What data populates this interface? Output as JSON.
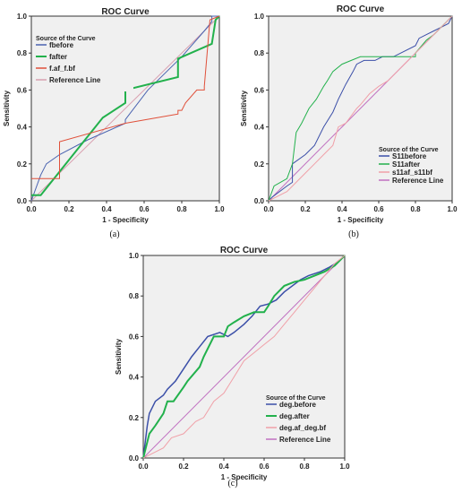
{
  "chart_data": [
    {
      "type": "line",
      "title": "ROC Curve",
      "caption": "(a)",
      "xlabel": "1 - Specificity",
      "ylabel": "Sensitivity",
      "xlim": [
        0,
        1
      ],
      "ylim": [
        0,
        1
      ],
      "xticks": [
        "0.0",
        "0.2",
        "0.4",
        "0.6",
        "0.8",
        "1.0"
      ],
      "yticks": [
        "0.0",
        "0.2",
        "0.4",
        "0.6",
        "0.8",
        "1.0"
      ],
      "grid": false,
      "legend": {
        "placement": "top-left",
        "title": "Source of the Curve"
      },
      "series": [
        {
          "name": "fbefore",
          "color": "#4a63b0",
          "width": 1,
          "x": [
            0,
            0.05,
            0.08,
            0.15,
            0.3,
            0.5,
            0.5,
            0.62,
            0.8,
            0.92,
            0.96,
            0.96,
            1
          ],
          "y": [
            0,
            0.14,
            0.2,
            0.25,
            0.33,
            0.42,
            0.44,
            0.6,
            0.78,
            0.92,
            0.97,
            1,
            1
          ]
        },
        {
          "name": "fafter",
          "color": "#22b14c",
          "width": 2,
          "x": [
            0,
            0.05,
            0.38,
            0.5,
            0.5,
            0.78,
            0.78,
            0.96,
            0.98,
            1
          ],
          "y": [
            0.03,
            0.03,
            0.45,
            0.53,
            0.6,
            0.67,
            0.77,
            0.85,
            0.98,
            1
          ]
        },
        {
          "name": "f.af_f.bf",
          "color": "#e0503a",
          "width": 1,
          "x": [
            0,
            0.08,
            0.15,
            0.15,
            0.5,
            0.78,
            0.78,
            0.8,
            0.82,
            0.88,
            0.92,
            0.92,
            0.95,
            1
          ],
          "y": [
            0.12,
            0.12,
            0.12,
            0.32,
            0.42,
            0.47,
            0.49,
            0.49,
            0.53,
            0.6,
            0.6,
            0.62,
            0.98,
            1
          ]
        },
        {
          "name": "Reference Line",
          "color": "#d9a0b0",
          "width": 1,
          "x": [
            0,
            1
          ],
          "y": [
            0,
            1
          ]
        }
      ]
    },
    {
      "type": "line",
      "title": "ROC Curve",
      "caption": "(b)",
      "xlabel": "1 - Specificity",
      "ylabel": "Sensitivity",
      "xlim": [
        0,
        1
      ],
      "ylim": [
        0,
        1
      ],
      "xticks": [
        "0.0",
        "0.2",
        "0.4",
        "0.6",
        "0.8",
        "1.0"
      ],
      "yticks": [
        "0.0",
        "0.2",
        "0.4",
        "0.6",
        "0.8",
        "1.0"
      ],
      "grid": false,
      "legend": {
        "placement": "bottom-right",
        "title": "Source of the Curve"
      },
      "series": [
        {
          "name": "S11before",
          "color": "#3b4fa8",
          "width": 1,
          "x": [
            0,
            0.02,
            0.1,
            0.13,
            0.13,
            0.2,
            0.25,
            0.3,
            0.35,
            0.38,
            0.42,
            0.46,
            0.48,
            0.52,
            0.58,
            0.62,
            0.68,
            0.72,
            0.8,
            0.82,
            0.86,
            0.9,
            0.94,
            0.98,
            1
          ],
          "y": [
            0,
            0.02,
            0.08,
            0.1,
            0.2,
            0.25,
            0.3,
            0.4,
            0.48,
            0.55,
            0.63,
            0.7,
            0.74,
            0.76,
            0.76,
            0.78,
            0.78,
            0.8,
            0.84,
            0.88,
            0.9,
            0.92,
            0.94,
            0.96,
            1
          ]
        },
        {
          "name": "S11after",
          "color": "#22b14c",
          "width": 1,
          "x": [
            0,
            0.03,
            0.1,
            0.13,
            0.15,
            0.18,
            0.22,
            0.26,
            0.3,
            0.32,
            0.35,
            0.4,
            0.45,
            0.5,
            0.55,
            0.62,
            0.7,
            0.8,
            0.8,
            0.86,
            0.9,
            0.94,
            1
          ],
          "y": [
            0,
            0.08,
            0.12,
            0.2,
            0.37,
            0.42,
            0.5,
            0.55,
            0.62,
            0.65,
            0.7,
            0.74,
            0.76,
            0.78,
            0.78,
            0.78,
            0.78,
            0.78,
            0.8,
            0.87,
            0.9,
            0.94,
            1
          ]
        },
        {
          "name": "s11af_s11bf",
          "color": "#f0a0a8",
          "width": 1,
          "x": [
            0,
            0.1,
            0.15,
            0.2,
            0.25,
            0.3,
            0.35,
            0.38,
            0.42,
            0.48,
            0.5,
            0.55,
            0.6,
            0.65,
            0.7,
            0.75,
            0.8,
            0.85,
            0.9,
            0.95,
            1
          ],
          "y": [
            0,
            0.05,
            0.1,
            0.15,
            0.2,
            0.25,
            0.3,
            0.4,
            0.42,
            0.5,
            0.52,
            0.58,
            0.62,
            0.65,
            0.7,
            0.75,
            0.8,
            0.85,
            0.9,
            0.95,
            1
          ]
        },
        {
          "name": "Reference Line",
          "color": "#c070c0",
          "width": 1,
          "x": [
            0,
            1
          ],
          "y": [
            0,
            1
          ]
        }
      ]
    },
    {
      "type": "line",
      "title": "ROC Curve",
      "caption": "(c)",
      "xlabel": "1 - Specificity",
      "ylabel": "Sensitivity",
      "xlim": [
        0,
        1
      ],
      "ylim": [
        0,
        1
      ],
      "xticks": [
        "0.0",
        "0.2",
        "0.4",
        "0.6",
        "0.8",
        "1.0"
      ],
      "yticks": [
        "0.0",
        "0.2",
        "0.4",
        "0.6",
        "0.8",
        "1.0"
      ],
      "grid": false,
      "legend": {
        "placement": "bottom-right",
        "title": "Source of the Curve"
      },
      "series": [
        {
          "name": "deg.before",
          "color": "#3b4fa8",
          "width": 1.5,
          "x": [
            0,
            0.02,
            0.03,
            0.06,
            0.1,
            0.12,
            0.16,
            0.2,
            0.24,
            0.28,
            0.32,
            0.38,
            0.42,
            0.45,
            0.5,
            0.54,
            0.58,
            0.62,
            0.66,
            0.7,
            0.78,
            0.82,
            0.88,
            0.92,
            0.97,
            1
          ],
          "y": [
            0,
            0.16,
            0.22,
            0.28,
            0.31,
            0.34,
            0.38,
            0.44,
            0.5,
            0.55,
            0.6,
            0.62,
            0.6,
            0.62,
            0.66,
            0.7,
            0.75,
            0.76,
            0.78,
            0.82,
            0.88,
            0.9,
            0.92,
            0.94,
            0.97,
            1
          ]
        },
        {
          "name": "deg.after",
          "color": "#22b14c",
          "width": 2,
          "x": [
            0,
            0.03,
            0.06,
            0.1,
            0.12,
            0.15,
            0.2,
            0.22,
            0.28,
            0.3,
            0.35,
            0.4,
            0.42,
            0.45,
            0.5,
            0.55,
            0.6,
            0.62,
            0.65,
            0.7,
            0.75,
            0.8,
            0.85,
            0.9,
            0.95,
            1
          ],
          "y": [
            0,
            0.12,
            0.16,
            0.22,
            0.28,
            0.28,
            0.35,
            0.38,
            0.45,
            0.5,
            0.6,
            0.6,
            0.65,
            0.67,
            0.7,
            0.72,
            0.72,
            0.75,
            0.8,
            0.85,
            0.87,
            0.88,
            0.9,
            0.92,
            0.95,
            1
          ]
        },
        {
          "name": "deg.af_deg.bf",
          "color": "#f0a0a8",
          "width": 1,
          "x": [
            0,
            0.1,
            0.14,
            0.2,
            0.26,
            0.3,
            0.35,
            0.4,
            0.45,
            0.5,
            0.55,
            0.6,
            0.65,
            0.7,
            0.75,
            0.8,
            0.85,
            0.9,
            0.95,
            1
          ],
          "y": [
            0,
            0.05,
            0.1,
            0.12,
            0.18,
            0.2,
            0.28,
            0.32,
            0.4,
            0.48,
            0.52,
            0.56,
            0.6,
            0.66,
            0.72,
            0.78,
            0.84,
            0.9,
            0.96,
            1
          ]
        },
        {
          "name": "Reference Line",
          "color": "#c070c0",
          "width": 1,
          "x": [
            0,
            1
          ],
          "y": [
            0,
            1
          ]
        }
      ]
    }
  ]
}
